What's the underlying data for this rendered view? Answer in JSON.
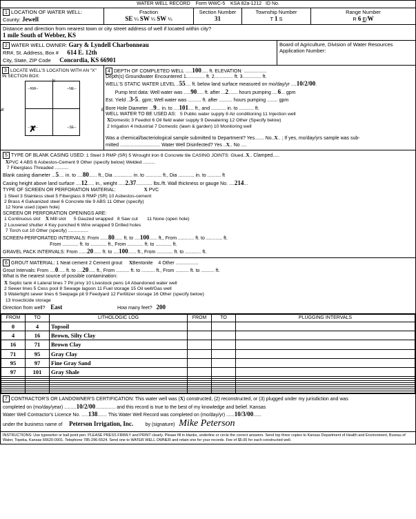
{
  "title": "WATER WELL RECORD",
  "formNo": "Form WWC-5",
  "ksa": "KSA 82a-1212",
  "idLabel": "ID No.",
  "loc": {
    "label": "LOCATION OF WATER WELL:",
    "countyLabel": "County:",
    "county": "Jewell",
    "fractionLabel": "Fraction",
    "f1": "SE",
    "f2": "SW",
    "f3": "SW",
    "secLabel": "Section Number",
    "sec": "31",
    "twpLabel": "Township Number",
    "twpT": "1",
    "rngLabel": "Range Number",
    "rngR": "6",
    "rngEW": "W"
  },
  "dist": {
    "label": "Distance and direction from nearest town or city street address of well if located within city?",
    "val": "1 mile South of Webber, KS"
  },
  "owner": {
    "label": "WATER WELL OWNER:",
    "name": "Gary & Lyndell Charbonneau",
    "addrLabel": "RR#, St. Address, Box #",
    "addr": "614 E. 12th",
    "cityLabel": "City, State, ZIP Code",
    "city": "Concordia, KS  66901",
    "board": "Board of Agriculture, Division of Water Resources",
    "appLabel": "Application Number:"
  },
  "sec3": {
    "label": "LOCATE WELL'S LOCATION WITH AN \"X\" IN SECTION BOX:"
  },
  "sec4": {
    "label": "DEPTH OF COMPLETED WELL",
    "depth": "100",
    "elevLabel": "ft. ELEVATION:",
    "gw": "Depth(s) Groundwater Encountered",
    "gw1": "1",
    "gw2": "ft. 2",
    "gw3": "ft. 3",
    "swl": "WELL'S STATIC WATER LEVEL",
    "swlVal": "55",
    "swlTail": "ft. below land surface measured on mo/day/yr",
    "swlDate": "10/2/00",
    "pump": "Pump test data: Well water was",
    "pumpVal": "90",
    "pumpAfter": "ft. after",
    "pumpHrs": "2",
    "pumpTail": "hours pumping",
    "pumpGpm": "6",
    "est": "Est. Yield",
    "estVal": "3-5",
    "estGpm": "gpm; Well water was",
    "estAfter": "ft. after",
    "estTail": "hours pumping",
    "bore": "Bore Hole Diameter",
    "boreVal": "9",
    "boreTo": "in. to",
    "boreDepth": "101",
    "boreTail": "ft., and",
    "useLabel": "WELL WATER TO BE USED AS:",
    "uses": "5 Public water supply    8 Air conditioning        11 Injection well",
    "uses2": "Domestic   3 Feedlot        6 Oil field water supply  9 Dewatering           12 Other (Specify below)",
    "uses3": "2 Irrigation    4 Industrial    7 Domestic (lawn & garden) 10 Monitoring well",
    "chem": "Was a chemical/bacteriological sample submitted to Department? Yes",
    "chemNo": "No",
    "chemTail": "; If yes, mo/day/yrs sample was sub-",
    "mitted": "mitted",
    "disLabel": "Water Well Disinfected?  Yes",
    "disNo": "No"
  },
  "sec5": {
    "label": "TYPE OF BLANK CASING USED:",
    "opts": "1 Steel          3 RMP (SR)       5 Wrought iron       8 Concrete tile      CASING JOINTS: Glued",
    "opts2": "PVC          4 ABS           6 Asbestos-Cement   9 Other (specify below)                    Welded",
    "opts3": "                               7 Fiberglass                                                   Threaded",
    "bcLabel": "Blank casing diameter",
    "bcVal": "5",
    "bcTo": "in. to",
    "bcDepth": "80",
    "chLabel": "Casing height above land surface",
    "chVal": "12",
    "chW": "in., weight",
    "chWVal": "2.37",
    "chTail": "lbs./ft. Wall thickness or gauge No.",
    "chGauge": "214",
    "spLabel": "TYPE OF SCREEN OR PERFORATION MATERIAL:",
    "pvc": "PVC",
    "sp1": "1 Steel          3 Stainless steel    5 Fiberglass       8 RMP (SR)       10 Asbestos-cement",
    "sp2": "2 Brass         4 Galvanized steel  6 Concrete tile    9 ABS             11 Other (specify)",
    "sp3": "                                                                         12 None used (open hole)",
    "poLabel": "SCREEN OR PERFORATION OPENINGS ARE:",
    "po1": "1 Continuous slot    Mill slot      5 Gauzed wrapped   8 Saw cut        11 None (open hole)",
    "po2": "2 Louvered shutter  4 Key punched  6 Wire wrapped     9 Drilled holes",
    "po3": "                                    7 Torch cut        10 Other (specify)",
    "siLabel": "SCREEN-PERFORATED INTERVALS: From",
    "si1": "80",
    "siTo": "ft. to",
    "si2": "100",
    "gpLabel": "GRAVEL PACK INTERVALS: From",
    "gp1": "20",
    "gpTo": "ft. to",
    "gp2": "100",
    "clamped": "Clamped"
  },
  "sec6": {
    "label": "GROUT MATERIAL:    1 Neat cement       2 Cement grout",
    "bent": "Bentonite",
    "oth": "4 Other",
    "giLabel": "Grout Intervals: From",
    "gi1": "0",
    "giTo": "ft. to",
    "gi2": "20",
    "srcLabel": "What is the nearest source of possible contamination:",
    "src1": "Septic tank      4 Lateral lines    7 Pit privy        10 Livestock pens     14 Abandoned water well",
    "src2": "2 Sewer lines      5 Cess pool       8 Sewage lagoon   11 Fuel storage       15 Oil well/Gas well",
    "src3": "3 Watertight sewer lines 6 Seepage pit  9 Feedyard     12 Fertilizer storage  16 Other (specify below)",
    "src4": "                                                        13 Insecticide storage",
    "dirLabel": "Direction from well?",
    "dir": "East",
    "feetLabel": "How many feet?",
    "feet": "200"
  },
  "log": {
    "h1": "FROM",
    "h2": "TO",
    "h3": "LITHOLOGIC LOG",
    "h4": "FROM",
    "h5": "TO",
    "h6": "PLUGGING INTERVALS",
    "rows": [
      {
        "f": "0",
        "t": "4",
        "d": "Topsoil"
      },
      {
        "f": "4",
        "t": "16",
        "d": "Brown, Silty Clay"
      },
      {
        "f": "16",
        "t": "71",
        "d": "Brown Clay"
      },
      {
        "f": "71",
        "t": "95",
        "d": "Gray Clay"
      },
      {
        "f": "95",
        "t": "97",
        "d": "Fine Gray Sand"
      },
      {
        "f": "97",
        "t": "101",
        "d": "Gray Shale"
      }
    ]
  },
  "sec7": {
    "label": "CONTRACTOR'S OR LANDOWNER'S CERTIFICATION: This water well was",
    "con": "constructed, (2) reconstructed, or (3) plugged under my jurisdiction and was",
    "compLabel": "completed on (mo/day/year)",
    "compDate": "10/2/00",
    "recTail": "and this record is true to the best of my knowledge and belief. Kansas",
    "licLabel": "Water Well Contractor's Licence No.",
    "lic": "138",
    "recLabel": "This Water Well Record was completed on (mo/day/yr)",
    "recDate": "10/3/00",
    "busLabel": "under the business name of",
    "bus": "Peterson Irrigation, Inc.",
    "sigLabel": "by (signature)",
    "sig": "Mike Peterson"
  },
  "instr": "INSTRUCTIONS: Use typewriter or ball point pen. PLEASE PRESS FIRMLY and PRINT clearly. Please fill in blanks, underline or circle the correct answers. Send top three copies to Kansas Department of Health and Environment, Bureau of Water, Topeka, Kansas 66620-0001. Telephone 785-296-5524. Send one to WATER WELL OWNER and retain one for your records. Fee of $5.00 for each constructed well.",
  "x": "X"
}
